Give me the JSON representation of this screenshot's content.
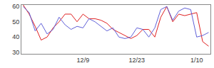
{
  "chart_data": {
    "type": "line",
    "categories": [
      null,
      null,
      null,
      null,
      null,
      null,
      null,
      null,
      null,
      null,
      "12/9",
      null,
      null,
      null,
      null,
      null,
      null,
      null,
      null,
      "12/23",
      null,
      null,
      null,
      null,
      null,
      null,
      null,
      null,
      null,
      "1/10",
      null,
      null
    ],
    "series": [
      {
        "color": "#e02020",
        "values": [
          61,
          55,
          47,
          38,
          40,
          46,
          50,
          55,
          55,
          50,
          55,
          52,
          52,
          51,
          49,
          45,
          43,
          41,
          39,
          41,
          45,
          45,
          40,
          53,
          60,
          50,
          55,
          54,
          55,
          56,
          37,
          34
        ]
      },
      {
        "color": "#6060d8",
        "values": [
          60,
          56,
          44,
          49,
          42,
          45,
          53,
          48,
          45,
          47,
          46,
          52,
          50,
          47,
          44,
          46,
          40,
          39,
          40,
          46,
          45,
          40,
          46,
          58,
          60,
          51,
          57,
          59,
          58,
          40,
          41,
          43
        ]
      }
    ],
    "ylim": [
      29,
      61
    ],
    "yticks": [
      30,
      40,
      50,
      60
    ],
    "grid": false
  }
}
